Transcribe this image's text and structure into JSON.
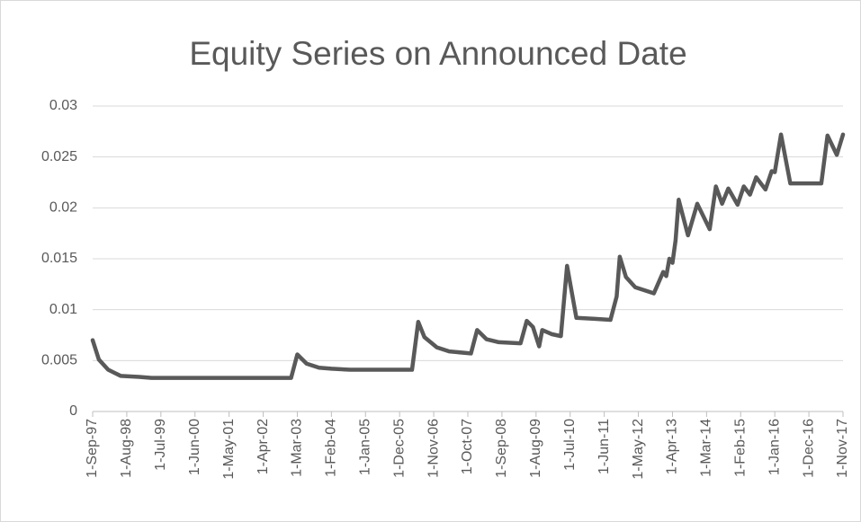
{
  "chart_data": {
    "type": "line",
    "title": "Equity Series on Announced Date",
    "x": [
      "1-Sep-97",
      "1-Nov-97",
      "1-Feb-98",
      "1-Jun-98",
      "1-Dec-98",
      "1-Apr-99",
      "1-Jan-03",
      "1-Mar-03",
      "1-Jun-03",
      "1-Oct-03",
      "1-Feb-04",
      "1-Aug-04",
      "1-Apr-06",
      "1-Jun-06",
      "1-Aug-06",
      "1-Dec-06",
      "1-Apr-07",
      "1-Nov-07",
      "1-Jan-08",
      "1-Apr-08",
      "1-Aug-08",
      "1-Mar-09",
      "1-May-09",
      "1-Jul-09",
      "1-Sep-09",
      "1-Oct-09",
      "1-Jan-10",
      "1-Apr-10",
      "1-Jun-10",
      "1-Sep-10",
      "1-Mar-11",
      "1-Aug-11",
      "1-Oct-11",
      "1-Nov-11",
      "1-Jan-12",
      "1-Apr-12",
      "1-Oct-12",
      "1-Jan-13",
      "1-Feb-13",
      "1-Mar-13",
      "1-Apr-13",
      "1-May-13",
      "1-Jun-13",
      "1-Sep-13",
      "1-Dec-13",
      "1-Apr-14",
      "1-Jun-14",
      "1-Aug-14",
      "1-Oct-14",
      "1-Jan-15",
      "1-Mar-15",
      "1-May-15",
      "1-Jul-15",
      "1-Oct-15",
      "1-Dec-15",
      "1-Jan-16",
      "1-Mar-16",
      "1-Jun-16",
      "1-Apr-17",
      "1-Jun-17",
      "1-Sep-17",
      "1-Nov-17"
    ],
    "series": [
      {
        "name": "Equity Series",
        "color": "#595959",
        "values": [
          0.007,
          0.0051,
          0.0041,
          0.0035,
          0.0034,
          0.0033,
          0.0033,
          0.0056,
          0.0047,
          0.0043,
          0.0042,
          0.0041,
          0.0041,
          0.0088,
          0.0073,
          0.0063,
          0.0059,
          0.0057,
          0.008,
          0.0071,
          0.0068,
          0.0067,
          0.0089,
          0.0083,
          0.0064,
          0.008,
          0.0076,
          0.0074,
          0.0143,
          0.0092,
          0.0091,
          0.009,
          0.0113,
          0.0152,
          0.0132,
          0.0122,
          0.0116,
          0.0137,
          0.0133,
          0.015,
          0.0146,
          0.0168,
          0.0208,
          0.0173,
          0.0204,
          0.0179,
          0.0221,
          0.0204,
          0.0219,
          0.0203,
          0.0221,
          0.0213,
          0.023,
          0.0218,
          0.0236,
          0.0235,
          0.0272,
          0.0224,
          0.0224,
          0.0271,
          0.0252,
          0.0272
        ]
      }
    ],
    "xlim": [
      "1-Sep-97",
      "1-Nov-17"
    ],
    "xticks": [
      "1-Sep-97",
      "1-Aug-98",
      "1-Jul-99",
      "1-Jun-00",
      "1-May-01",
      "1-Apr-02",
      "1-Mar-03",
      "1-Feb-04",
      "1-Jan-05",
      "1-Dec-05",
      "1-Nov-06",
      "1-Oct-07",
      "1-Sep-08",
      "1-Aug-09",
      "1-Jul-10",
      "1-Jun-11",
      "1-May-12",
      "1-Apr-13",
      "1-Mar-14",
      "1-Feb-15",
      "1-Jan-16",
      "1-Dec-16",
      "1-Nov-17"
    ],
    "ylim": [
      0,
      0.03
    ],
    "yticks": [
      0,
      0.005,
      0.01,
      0.015,
      0.02,
      0.025,
      0.03
    ],
    "grid": true
  }
}
